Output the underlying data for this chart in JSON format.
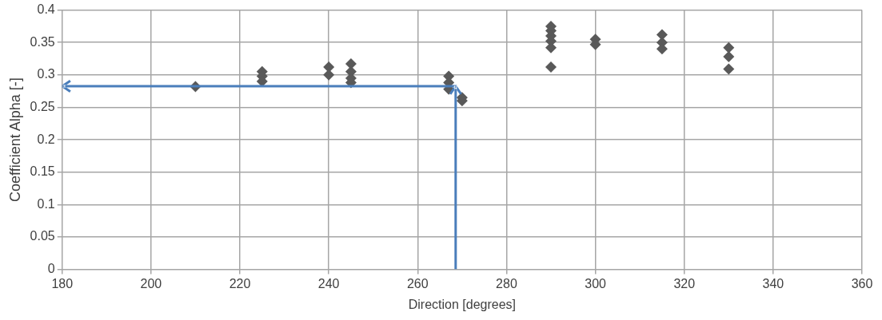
{
  "chart_data": {
    "type": "scatter",
    "xlabel": "Direction [degrees]",
    "ylabel": "Coefficient Alpha [-]",
    "xlim": [
      180,
      360
    ],
    "xticks": [
      180,
      200,
      220,
      240,
      260,
      280,
      300,
      320,
      340,
      360
    ],
    "ylim": [
      0,
      0.4
    ],
    "yticks": [
      0,
      0.05,
      0.1,
      0.15,
      0.2,
      0.25,
      0.3,
      0.35,
      0.4
    ],
    "grid": true,
    "legend": false,
    "marker": "diamond",
    "series": [
      {
        "color": "#595959",
        "x": [
          210,
          225,
          225,
          225,
          240,
          240,
          245,
          245,
          245,
          245,
          267,
          267,
          267,
          270,
          270,
          290,
          290,
          290,
          290,
          290,
          290,
          300,
          300,
          315,
          315,
          315,
          330,
          330,
          330
        ],
        "values": [
          0.282,
          0.305,
          0.298,
          0.29,
          0.312,
          0.3,
          0.317,
          0.305,
          0.295,
          0.288,
          0.298,
          0.288,
          0.278,
          0.265,
          0.26,
          0.375,
          0.368,
          0.36,
          0.352,
          0.342,
          0.312,
          0.355,
          0.347,
          0.362,
          0.35,
          0.34,
          0.342,
          0.328,
          0.309
        ]
      }
    ]
  }
}
